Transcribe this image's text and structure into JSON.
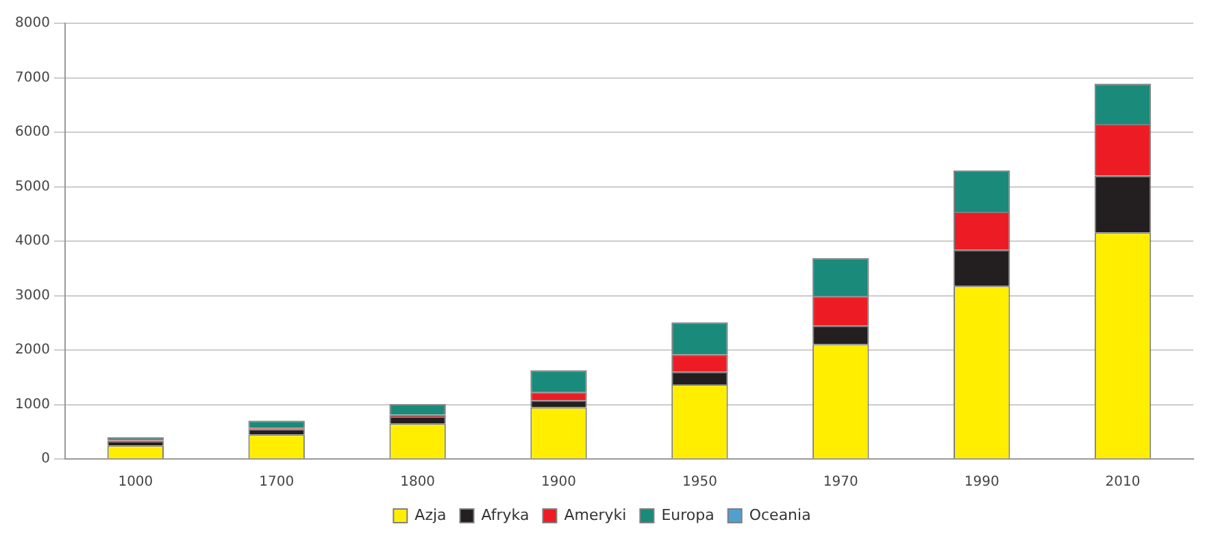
{
  "chart_data": {
    "type": "bar",
    "stacked": true,
    "categories": [
      "1000",
      "1700",
      "1800",
      "1900",
      "1950",
      "1970",
      "1990",
      "2010"
    ],
    "series": [
      {
        "name": "Azja",
        "color": "#ffee00",
        "values": [
          250,
          450,
          650,
          950,
          1370,
          2110,
          3180,
          4160
        ]
      },
      {
        "name": "Afryka",
        "color": "#231f20",
        "values": [
          80,
          100,
          130,
          130,
          230,
          340,
          660,
          1040
        ]
      },
      {
        "name": "Ameryki",
        "color": "#ed1c24",
        "values": [
          20,
          20,
          30,
          150,
          320,
          540,
          700,
          950
        ]
      },
      {
        "name": "Europa",
        "color": "#1a8a7a",
        "values": [
          50,
          130,
          200,
          400,
          590,
          700,
          760,
          740
        ]
      },
      {
        "name": "Oceania",
        "color": "#4f9fcf",
        "values": [
          null,
          null,
          null,
          null,
          null,
          null,
          null,
          null
        ]
      }
    ],
    "ylim": [
      0,
      8000
    ],
    "yticks": [
      0,
      1000,
      2000,
      3000,
      4000,
      5000,
      6000,
      7000,
      8000
    ],
    "grid": "y",
    "legend": "bottom"
  }
}
